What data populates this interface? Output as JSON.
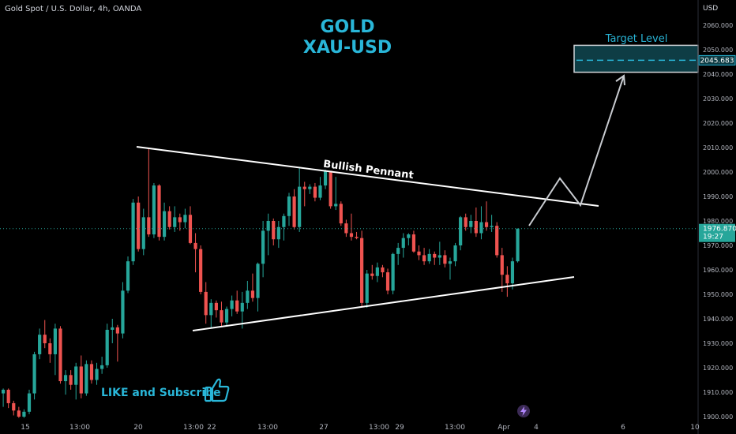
{
  "header": {
    "ticker": "Gold Spot / U.S. Dollar, 4h, OANDA"
  },
  "title": {
    "line1": "GOLD",
    "line2": "XAU-USD"
  },
  "cta": {
    "text": "LIKE and Subscribe",
    "icon": "thumbs-up-icon"
  },
  "annotations": {
    "pattern_label": "Bullish Pennant",
    "target_label": "Target Level"
  },
  "price_axis": {
    "unit": "USD",
    "ticks": [
      "2060.000",
      "2050.000",
      "2040.000",
      "2030.000",
      "2020.000",
      "2010.000",
      "2000.000",
      "1990.000",
      "1980.000",
      "1970.000",
      "1960.000",
      "1950.000",
      "1940.000",
      "1930.000",
      "1920.000",
      "1910.000",
      "1900.000"
    ],
    "target_value_label": "2045.683",
    "last_price_label": "1976.870",
    "countdown_label": "19:27"
  },
  "time_axis": {
    "labels": [
      "15",
      "13:00",
      "20",
      "13:00",
      "22",
      "13:00",
      "27",
      "13:00",
      "29",
      "13:00",
      "Apr",
      "4",
      "6",
      "10"
    ]
  },
  "colors": {
    "up": "#26a69a",
    "down": "#ef5350",
    "accent": "#29b6d8",
    "lines": "#ffffff",
    "target_box": "#0e3d45"
  },
  "chart_data": {
    "type": "candlestick",
    "y_range": [
      1899.4,
      2066.8
    ],
    "gridlines": false,
    "last_price": 1976.87,
    "target_level": 2045.683,
    "target_zone": [
      2040.8,
      2051.8
    ],
    "x_labels": [
      "15",
      "13:00",
      "20",
      "13:00",
      "22",
      "13:00",
      "27",
      "13:00",
      "29",
      "13:00",
      "Apr",
      "4",
      "6",
      "10"
    ],
    "candles_ohlc": [
      [
        1909.5,
        1911.5,
        1904.0,
        1911.0
      ],
      [
        1911.0,
        1911.5,
        1903.5,
        1905.5
      ],
      [
        1905.5,
        1906.5,
        1900.5,
        1902.5
      ],
      [
        1902.5,
        1904.0,
        1899.5,
        1900.0
      ],
      [
        1900.0,
        1903.0,
        1899.5,
        1902.0
      ],
      [
        1902.0,
        1911.0,
        1901.0,
        1909.5
      ],
      [
        1909.5,
        1926.5,
        1907.0,
        1925.5
      ],
      [
        1925.5,
        1936.0,
        1923.5,
        1933.5
      ],
      [
        1933.5,
        1939.5,
        1928.0,
        1930.0
      ],
      [
        1930.0,
        1932.0,
        1922.0,
        1925.5
      ],
      [
        1925.5,
        1938.0,
        1917.0,
        1936.0
      ],
      [
        1936.0,
        1937.0,
        1913.5,
        1914.5
      ],
      [
        1914.5,
        1919.0,
        1909.0,
        1917.0
      ],
      [
        1917.0,
        1919.0,
        1911.0,
        1913.0
      ],
      [
        1913.0,
        1922.0,
        1907.0,
        1920.5
      ],
      [
        1920.5,
        1925.0,
        1907.5,
        1909.5
      ],
      [
        1909.5,
        1923.0,
        1908.5,
        1921.5
      ],
      [
        1921.5,
        1923.0,
        1913.5,
        1915.0
      ],
      [
        1915.0,
        1922.0,
        1913.0,
        1919.5
      ],
      [
        1919.5,
        1924.5,
        1917.5,
        1921.0
      ],
      [
        1921.0,
        1938.0,
        1920.0,
        1935.5
      ],
      [
        1935.5,
        1940.0,
        1930.0,
        1936.5
      ],
      [
        1936.5,
        1937.5,
        1922.5,
        1934.0
      ],
      [
        1934.0,
        1955.0,
        1932.0,
        1951.5
      ],
      [
        1951.5,
        1965.5,
        1950.5,
        1963.5
      ],
      [
        1963.5,
        1989.0,
        1962.0,
        1987.5
      ],
      [
        1987.5,
        1990.0,
        1967.5,
        1968.5
      ],
      [
        1968.5,
        1985.0,
        1966.0,
        1981.5
      ],
      [
        1981.5,
        2010.0,
        1973.5,
        1974.5
      ],
      [
        1974.5,
        1995.5,
        1973.0,
        1994.5
      ],
      [
        1994.5,
        1995.0,
        1972.0,
        1973.5
      ],
      [
        1973.5,
        1987.5,
        1972.0,
        1984.0
      ],
      [
        1984.0,
        1986.0,
        1976.5,
        1977.5
      ],
      [
        1977.5,
        1986.0,
        1975.5,
        1981.5
      ],
      [
        1981.5,
        1983.0,
        1976.0,
        1979.5
      ],
      [
        1979.5,
        1985.0,
        1977.0,
        1982.5
      ],
      [
        1982.5,
        1986.0,
        1970.5,
        1971.0
      ],
      [
        1971.0,
        1975.0,
        1959.0,
        1968.5
      ],
      [
        1968.5,
        1970.0,
        1950.0,
        1951.0
      ],
      [
        1951.0,
        1955.0,
        1938.0,
        1941.5
      ],
      [
        1941.5,
        1948.0,
        1936.0,
        1946.5
      ],
      [
        1946.5,
        1947.5,
        1940.5,
        1943.5
      ],
      [
        1943.5,
        1947.0,
        1937.0,
        1938.5
      ],
      [
        1938.5,
        1945.0,
        1937.0,
        1944.0
      ],
      [
        1944.0,
        1949.5,
        1941.0,
        1947.5
      ],
      [
        1947.5,
        1951.5,
        1942.0,
        1943.0
      ],
      [
        1943.0,
        1951.0,
        1936.0,
        1946.5
      ],
      [
        1946.5,
        1955.5,
        1944.0,
        1951.5
      ],
      [
        1951.5,
        1958.5,
        1947.0,
        1948.5
      ],
      [
        1948.5,
        1963.0,
        1943.0,
        1962.5
      ],
      [
        1962.5,
        1980.0,
        1957.0,
        1976.0
      ],
      [
        1976.0,
        1983.0,
        1966.0,
        1980.0
      ],
      [
        1980.0,
        1981.0,
        1970.0,
        1972.5
      ],
      [
        1972.5,
        1980.0,
        1969.0,
        1977.5
      ],
      [
        1977.5,
        1983.0,
        1972.0,
        1982.0
      ],
      [
        1982.0,
        1991.5,
        1978.0,
        1990.0
      ],
      [
        1990.0,
        1993.0,
        1976.5,
        1977.5
      ],
      [
        1977.5,
        2002.0,
        1975.5,
        1994.0
      ],
      [
        1994.0,
        1996.0,
        1986.0,
        1993.0
      ],
      [
        1993.0,
        1995.0,
        1991.0,
        1994.0
      ],
      [
        1994.0,
        1995.5,
        1988.0,
        1989.5
      ],
      [
        1989.5,
        1998.0,
        1988.5,
        1994.5
      ],
      [
        1994.5,
        2001.0,
        1993.0,
        2000.5
      ],
      [
        2000.5,
        2000.5,
        1985.0,
        1986.0
      ],
      [
        1986.0,
        1998.0,
        1984.5,
        1987.0
      ],
      [
        1987.0,
        1988.0,
        1978.0,
        1979.0
      ],
      [
        1979.0,
        1980.5,
        1973.5,
        1975.0
      ],
      [
        1975.0,
        1983.0,
        1972.0,
        1973.5
      ],
      [
        1973.5,
        1975.5,
        1972.5,
        1973.0
      ],
      [
        1973.0,
        1976.0,
        1945.0,
        1946.5
      ],
      [
        1946.5,
        1960.0,
        1944.5,
        1958.5
      ],
      [
        1958.5,
        1962.0,
        1956.0,
        1957.5
      ],
      [
        1957.5,
        1963.0,
        1955.0,
        1961.0
      ],
      [
        1961.0,
        1962.0,
        1957.0,
        1959.0
      ],
      [
        1959.0,
        1960.5,
        1950.0,
        1951.5
      ],
      [
        1951.5,
        1967.0,
        1950.0,
        1966.5
      ],
      [
        1966.5,
        1971.0,
        1962.0,
        1969.0
      ],
      [
        1969.0,
        1975.0,
        1965.0,
        1973.0
      ],
      [
        1973.0,
        1975.0,
        1970.0,
        1974.5
      ],
      [
        1974.5,
        1976.0,
        1967.0,
        1967.5
      ],
      [
        1967.5,
        1970.0,
        1964.0,
        1966.0
      ],
      [
        1966.0,
        1969.0,
        1962.0,
        1963.5
      ],
      [
        1963.5,
        1968.5,
        1962.5,
        1966.5
      ],
      [
        1966.5,
        1967.5,
        1962.0,
        1965.0
      ],
      [
        1965.0,
        1971.5,
        1962.0,
        1966.0
      ],
      [
        1966.0,
        1968.0,
        1961.0,
        1962.5
      ],
      [
        1962.5,
        1965.0,
        1956.0,
        1963.5
      ],
      [
        1963.5,
        1971.0,
        1961.5,
        1970.0
      ],
      [
        1970.0,
        1982.0,
        1968.0,
        1981.5
      ],
      [
        1981.5,
        1983.0,
        1976.0,
        1977.5
      ],
      [
        1977.5,
        1982.5,
        1975.0,
        1980.0
      ],
      [
        1980.0,
        1985.5,
        1973.5,
        1975.0
      ],
      [
        1975.0,
        1986.0,
        1972.5,
        1979.5
      ],
      [
        1979.5,
        1988.0,
        1976.0,
        1977.5
      ],
      [
        1977.5,
        1982.5,
        1975.5,
        1978.0
      ],
      [
        1978.0,
        1979.5,
        1965.0,
        1966.0
      ],
      [
        1966.0,
        1969.0,
        1951.0,
        1958.0
      ],
      [
        1958.0,
        1961.5,
        1949.0,
        1954.5
      ],
      [
        1954.5,
        1965.0,
        1952.0,
        1963.5
      ],
      [
        1963.5,
        1976.9,
        1963.0,
        1976.87
      ]
    ]
  }
}
